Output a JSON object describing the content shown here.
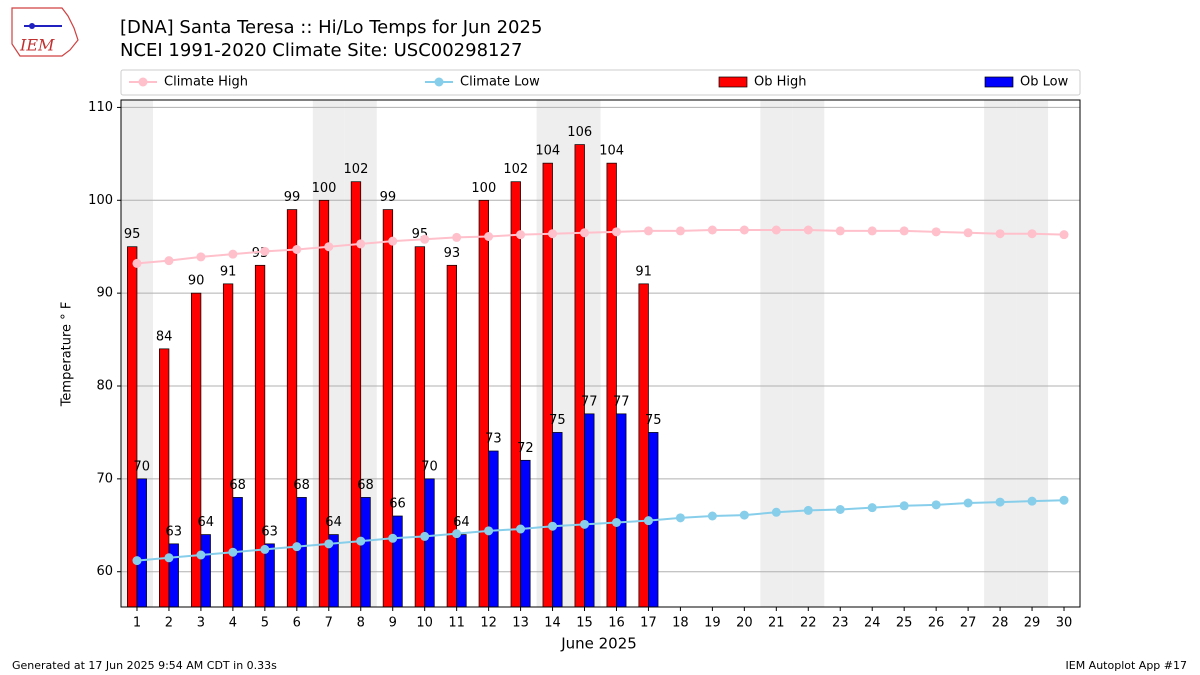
{
  "chart_data": {
    "type": "bar",
    "title": "[DNA] Santa Teresa :: Hi/Lo Temps for Jun 2025",
    "subtitle": "NCEI 1991-2020 Climate Site: USC00298127",
    "xlabel": "June 2025",
    "ylabel": "Temperature ° F",
    "x": [
      1,
      2,
      3,
      4,
      5,
      6,
      7,
      8,
      9,
      10,
      11,
      12,
      13,
      14,
      15,
      16,
      17,
      18,
      19,
      20,
      21,
      22,
      23,
      24,
      25,
      26,
      27,
      28,
      29,
      30
    ],
    "xlim": [
      0.5,
      30.5
    ],
    "xticks": [
      1,
      2,
      3,
      4,
      5,
      6,
      7,
      8,
      9,
      10,
      11,
      12,
      13,
      14,
      15,
      16,
      17,
      18,
      19,
      20,
      21,
      22,
      23,
      24,
      25,
      26,
      27,
      28,
      29,
      30
    ],
    "ylim": [
      56.2,
      110.8
    ],
    "yticks": [
      60,
      70,
      80,
      90,
      100,
      110
    ],
    "grid": true,
    "legend": "top",
    "shaded_days": [
      1,
      7,
      8,
      14,
      15,
      21,
      22,
      28,
      29
    ],
    "series": [
      {
        "name": "Climate High",
        "type": "line",
        "color": "#ffc0cb",
        "values": [
          93.2,
          93.5,
          93.9,
          94.2,
          94.5,
          94.7,
          95.0,
          95.3,
          95.6,
          95.8,
          96.0,
          96.1,
          96.3,
          96.4,
          96.5,
          96.6,
          96.7,
          96.7,
          96.8,
          96.8,
          96.8,
          96.8,
          96.7,
          96.7,
          96.7,
          96.6,
          96.5,
          96.4,
          96.4,
          96.3
        ]
      },
      {
        "name": "Climate Low",
        "type": "line",
        "color": "#87ceeb",
        "values": [
          61.2,
          61.5,
          61.8,
          62.1,
          62.4,
          62.7,
          63.0,
          63.3,
          63.6,
          63.8,
          64.1,
          64.4,
          64.6,
          64.9,
          65.1,
          65.3,
          65.5,
          65.8,
          66.0,
          66.1,
          66.4,
          66.6,
          66.7,
          66.9,
          67.1,
          67.2,
          67.4,
          67.5,
          67.6,
          67.7
        ]
      },
      {
        "name": "Ob High",
        "type": "bar",
        "color": "#ff0000",
        "values": [
          95,
          84,
          90,
          91,
          93,
          99,
          100,
          102,
          99,
          95,
          93,
          100,
          102,
          104,
          106,
          104,
          91,
          null,
          null,
          null,
          null,
          null,
          null,
          null,
          null,
          null,
          null,
          null,
          null,
          null
        ]
      },
      {
        "name": "Ob Low",
        "type": "bar",
        "color": "#0000ff",
        "values": [
          70,
          63,
          64,
          68,
          63,
          68,
          64,
          68,
          66,
          70,
          64,
          73,
          72,
          75,
          77,
          77,
          75,
          null,
          null,
          null,
          null,
          null,
          null,
          null,
          null,
          null,
          null,
          null,
          null,
          null
        ]
      }
    ]
  },
  "footer_left": "Generated at 17 Jun 2025 9:54 AM CDT in 0.33s",
  "footer_right": "IEM Autoplot App #17",
  "logo_text": "IEM"
}
